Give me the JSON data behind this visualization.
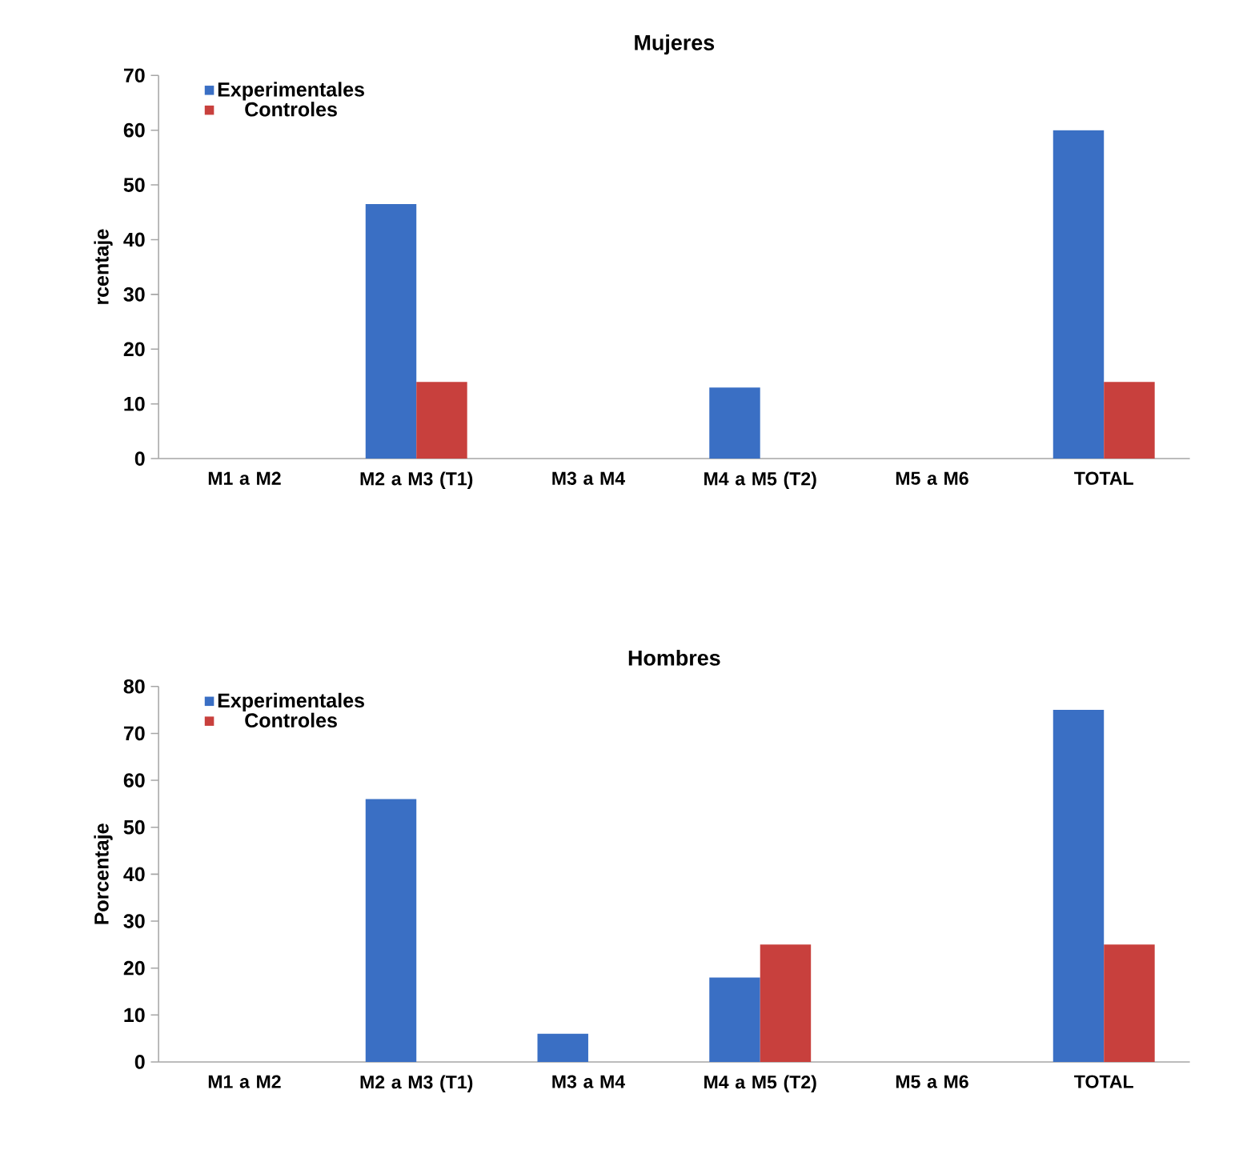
{
  "chart_data": [
    {
      "type": "bar",
      "title": "Mujeres",
      "ylabel": "rcentaje",
      "categories": [
        "M1 a M2",
        "M2 a M3 (T1)",
        "M3 a M4",
        "M4 a M5 (T2)",
        "M5 a M6",
        "TOTAL"
      ],
      "series": [
        {
          "name": "Experimentales",
          "color": "#3a6fc4",
          "values": [
            0,
            46.5,
            0,
            13,
            0,
            60
          ]
        },
        {
          "name": "Controles",
          "color": "#c8403d",
          "values": [
            0,
            14,
            0,
            0,
            0,
            14
          ]
        }
      ],
      "ylim": [
        0,
        70
      ],
      "yticks": [
        0,
        10,
        20,
        30,
        40,
        50,
        60,
        70
      ],
      "legend": "top left"
    },
    {
      "type": "bar",
      "title": "Hombres",
      "ylabel": "Porcentaje",
      "categories": [
        "M1 a M2",
        "M2 a M3 (T1)",
        "M3 a M4",
        "M4 a M5 (T2)",
        "M5 a M6",
        "TOTAL"
      ],
      "series": [
        {
          "name": "Experimentales",
          "color": "#3a6fc4",
          "values": [
            0,
            56,
            6,
            18,
            0,
            75
          ]
        },
        {
          "name": "Controles",
          "color": "#c8403d",
          "values": [
            0,
            0,
            0,
            25,
            0,
            25
          ]
        }
      ],
      "ylim": [
        0,
        80
      ],
      "yticks": [
        0,
        10,
        20,
        30,
        40,
        50,
        60,
        70,
        80
      ],
      "legend": "top left"
    }
  ]
}
